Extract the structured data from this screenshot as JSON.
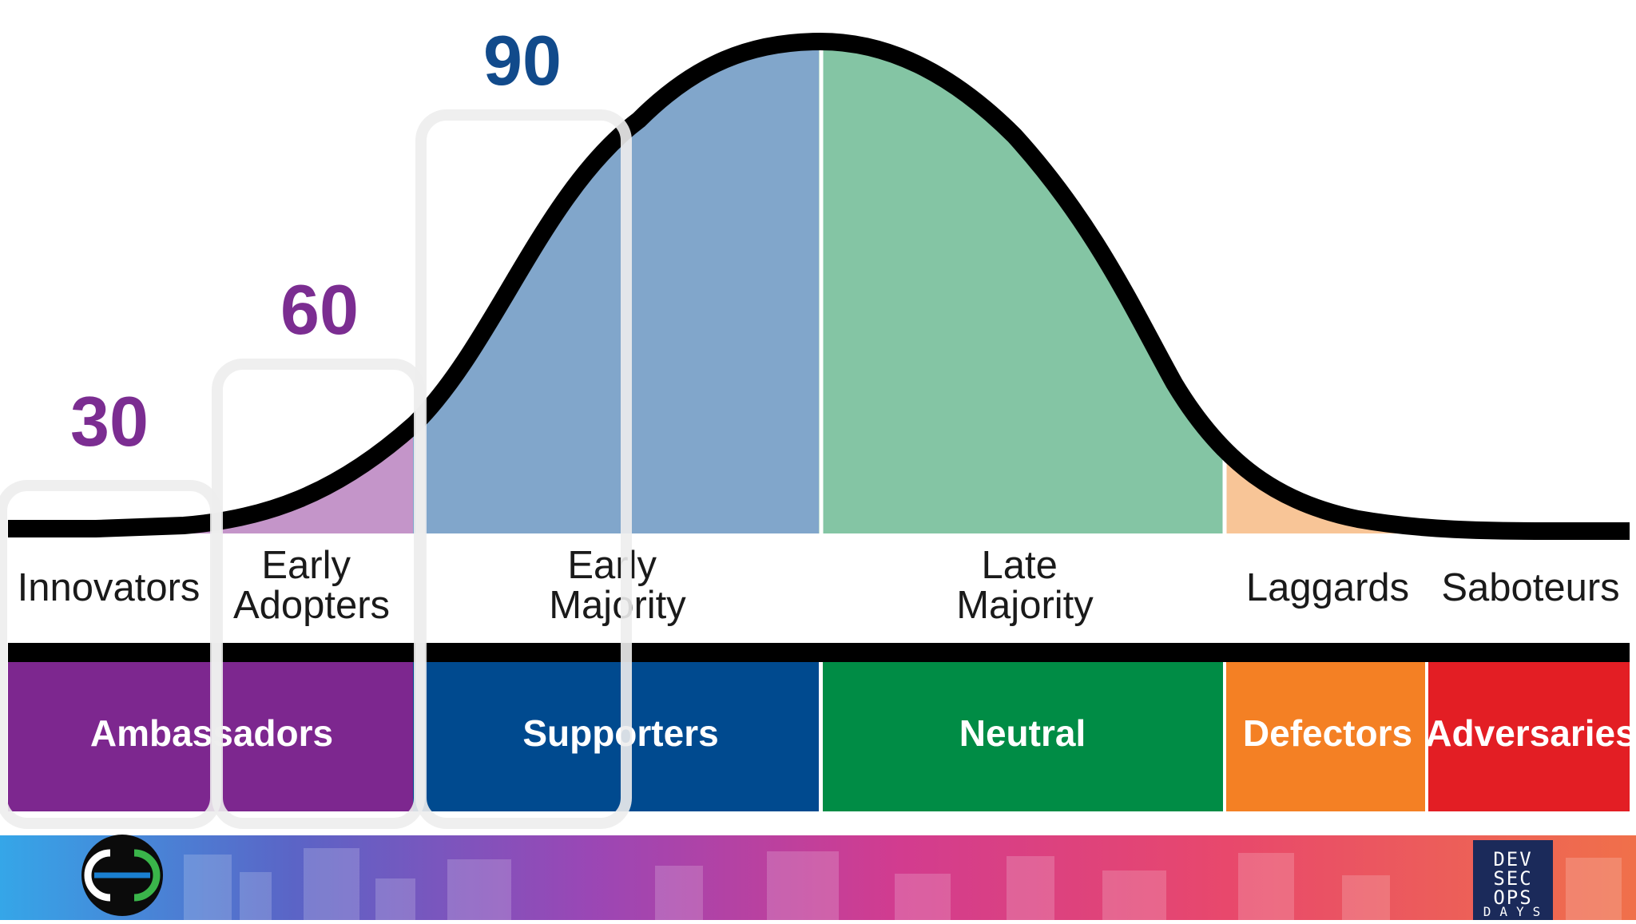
{
  "counts": [
    {
      "value": "30",
      "color": "#7b2d91"
    },
    {
      "value": "60",
      "color": "#7b2d91"
    },
    {
      "value": "90",
      "color": "#114a8b"
    }
  ],
  "segments": [
    {
      "label_lines": [
        "Innovators"
      ],
      "color": "#c495c9"
    },
    {
      "label_lines": [
        "Early",
        "Adopters"
      ],
      "color": "#c495c9"
    },
    {
      "label_lines": [
        "Early",
        "Majority"
      ],
      "color": "#81a6cb"
    },
    {
      "label_lines": [
        "Late",
        "Majority"
      ],
      "color": "#84c5a4"
    },
    {
      "label_lines": [
        "Laggards"
      ],
      "color": "#f8c597"
    },
    {
      "label_lines": [
        "Saboteurs"
      ],
      "color": "#ef8c8d"
    }
  ],
  "groups": [
    {
      "label": "Ambassadors",
      "color": "#7d278f"
    },
    {
      "label": "Supporters",
      "color": "#004a8f"
    },
    {
      "label": "Neutral",
      "color": "#008c45"
    },
    {
      "label": "Defectors",
      "color": "#f48024"
    },
    {
      "label": "Adversaries",
      "color": "#e31e24"
    }
  ],
  "footer": {
    "logo_right_lines": [
      "DEV",
      "SEC",
      "OPS"
    ],
    "logo_right_days": "DAYS"
  }
}
